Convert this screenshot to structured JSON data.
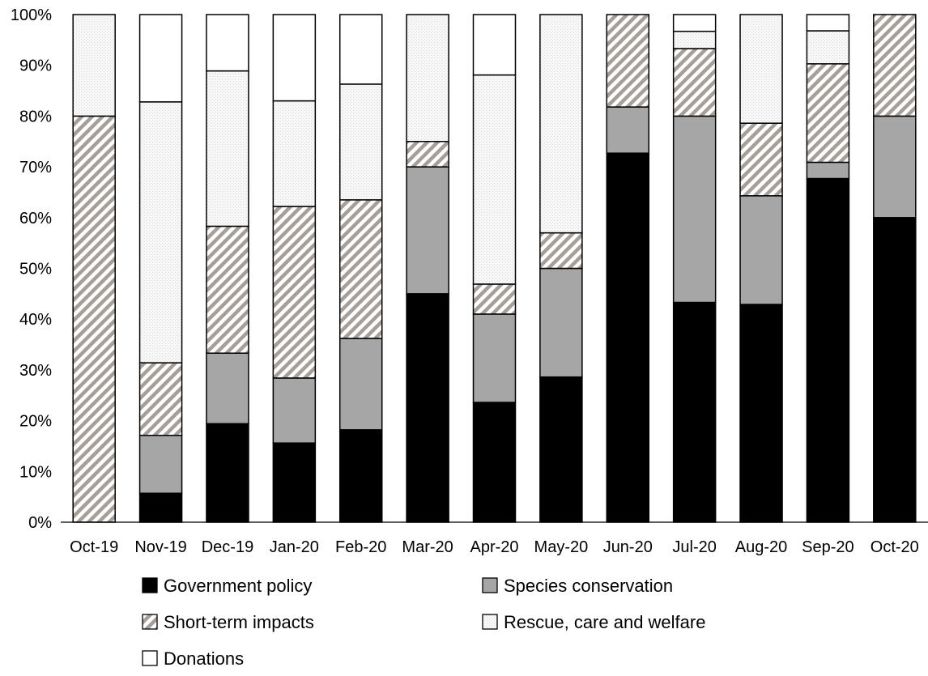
{
  "chart_data": {
    "type": "bar",
    "stacked": true,
    "percent": true,
    "title": "",
    "xlabel": "",
    "ylabel": "",
    "ylim": [
      0,
      100
    ],
    "yticks": [
      "0%",
      "10%",
      "20%",
      "30%",
      "40%",
      "50%",
      "60%",
      "70%",
      "80%",
      "90%",
      "100%"
    ],
    "categories": [
      "Oct-19",
      "Nov-19",
      "Dec-19",
      "Jan-20",
      "Feb-20",
      "Mar-20",
      "Apr-20",
      "May-20",
      "Jun-20",
      "Jul-20",
      "Aug-20",
      "Sep-20",
      "Oct-20"
    ],
    "series": [
      {
        "name": "Government policy",
        "values": [
          0,
          5.7,
          19.4,
          15.6,
          18.2,
          45,
          23.6,
          28.6,
          72.7,
          43.3,
          42.9,
          67.7,
          60
        ]
      },
      {
        "name": "Species conservation",
        "values": [
          0,
          11.4,
          13.9,
          12.8,
          18,
          25,
          17.4,
          21.4,
          9.1,
          36.7,
          21.4,
          3.2,
          20
        ]
      },
      {
        "name": "Short-term impacts",
        "values": [
          80,
          14.3,
          25,
          33.8,
          27.3,
          5,
          5.9,
          7,
          18.2,
          13.3,
          14.3,
          19.4,
          20
        ]
      },
      {
        "name": "Rescue, care and welfare",
        "values": [
          20,
          51.4,
          30.6,
          20.8,
          22.8,
          25,
          41.2,
          43,
          0,
          3.4,
          21.4,
          6.5,
          0
        ]
      },
      {
        "name": "Donations",
        "values": [
          0,
          17.2,
          11.1,
          17,
          13.7,
          0,
          11.9,
          0,
          0,
          3.3,
          0,
          3.2,
          0
        ]
      }
    ],
    "series_colors": [
      "#000000",
      "#a6a6a6",
      "hatch",
      "#f2f2f2",
      "#ffffff"
    ],
    "legend_position": "bottom",
    "grid": false
  }
}
